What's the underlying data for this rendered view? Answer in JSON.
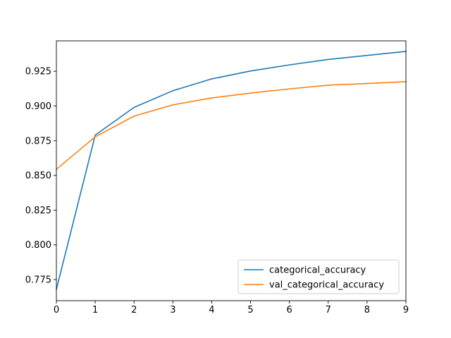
{
  "chart_data": {
    "type": "line",
    "title": "",
    "xlabel": "",
    "ylabel": "",
    "x": [
      0,
      1,
      2,
      3,
      4,
      5,
      6,
      7,
      8,
      9
    ],
    "xlim": [
      0,
      9
    ],
    "ylim": [
      0.7598,
      0.9469
    ],
    "xticks": [
      0,
      1,
      2,
      3,
      4,
      5,
      6,
      7,
      8,
      9
    ],
    "yticks": [
      0.775,
      0.8,
      0.825,
      0.85,
      0.875,
      0.9,
      0.925
    ],
    "ytick_labels": [
      "0.775",
      "0.800",
      "0.825",
      "0.850",
      "0.875",
      "0.900",
      "0.925"
    ],
    "grid": false,
    "legend_position": "bottom-right",
    "series": [
      {
        "name": "categorical_accuracy",
        "color": "#1f77b4",
        "values": [
          0.768,
          0.879,
          0.899,
          0.911,
          0.9195,
          0.9252,
          0.9296,
          0.9335,
          0.9364,
          0.9393
        ]
      },
      {
        "name": "val_categorical_accuracy",
        "color": "#ff7f0e",
        "values": [
          0.8544,
          0.8778,
          0.8927,
          0.9008,
          0.9058,
          0.9093,
          0.9123,
          0.915,
          0.9162,
          0.9175
        ]
      }
    ]
  }
}
